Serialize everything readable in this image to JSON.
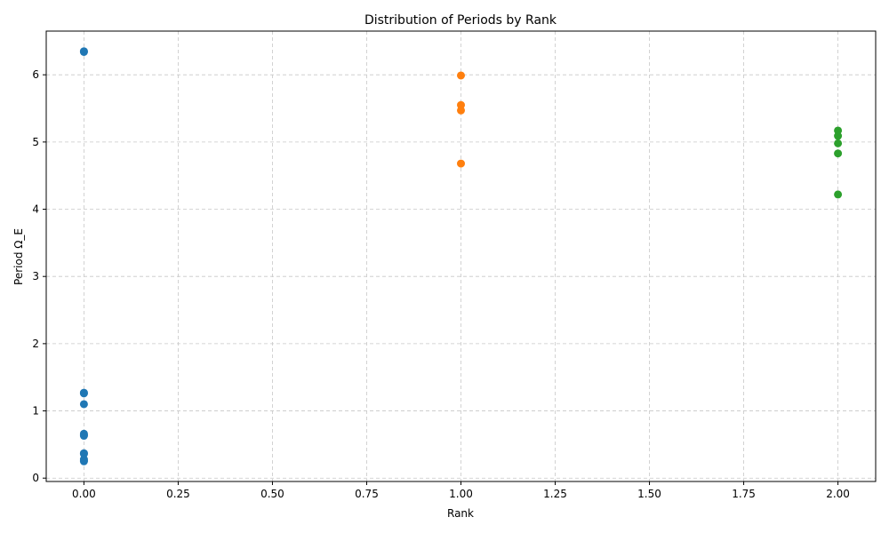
{
  "chart_data": {
    "type": "scatter",
    "title": "Distribution of Periods by Rank",
    "xlabel": "Rank",
    "ylabel": "Period Ω_E",
    "xlim": [
      -0.1,
      2.1
    ],
    "ylim": [
      -0.05,
      6.65
    ],
    "xticks": [
      0.0,
      0.25,
      0.5,
      0.75,
      1.0,
      1.25,
      1.5,
      1.75,
      2.0
    ],
    "xtick_labels": [
      "0.00",
      "0.25",
      "0.50",
      "0.75",
      "1.00",
      "1.25",
      "1.50",
      "1.75",
      "2.00"
    ],
    "yticks": [
      0,
      1,
      2,
      3,
      4,
      5,
      6
    ],
    "ytick_labels": [
      "0",
      "1",
      "2",
      "3",
      "4",
      "5",
      "6"
    ],
    "grid": true,
    "series": [
      {
        "color": "#1f77b4",
        "points": [
          {
            "x": 0,
            "y": 6.35
          },
          {
            "x": 0,
            "y": 6.34
          },
          {
            "x": 0,
            "y": 1.27
          },
          {
            "x": 0,
            "y": 1.26
          },
          {
            "x": 0,
            "y": 1.1
          },
          {
            "x": 0,
            "y": 0.66
          },
          {
            "x": 0,
            "y": 0.64
          },
          {
            "x": 0,
            "y": 0.63
          },
          {
            "x": 0,
            "y": 0.37
          },
          {
            "x": 0,
            "y": 0.36
          },
          {
            "x": 0,
            "y": 0.28
          },
          {
            "x": 0,
            "y": 0.26
          },
          {
            "x": 0,
            "y": 0.25
          }
        ]
      },
      {
        "color": "#ff7f0e",
        "points": [
          {
            "x": 1,
            "y": 5.99
          },
          {
            "x": 1,
            "y": 5.55
          },
          {
            "x": 1,
            "y": 5.47
          },
          {
            "x": 1,
            "y": 4.68
          }
        ]
      },
      {
        "color": "#2ca02c",
        "points": [
          {
            "x": 2,
            "y": 5.17
          },
          {
            "x": 2,
            "y": 5.09
          },
          {
            "x": 2,
            "y": 4.98
          },
          {
            "x": 2,
            "y": 4.83
          },
          {
            "x": 2,
            "y": 4.22
          }
        ]
      }
    ]
  }
}
